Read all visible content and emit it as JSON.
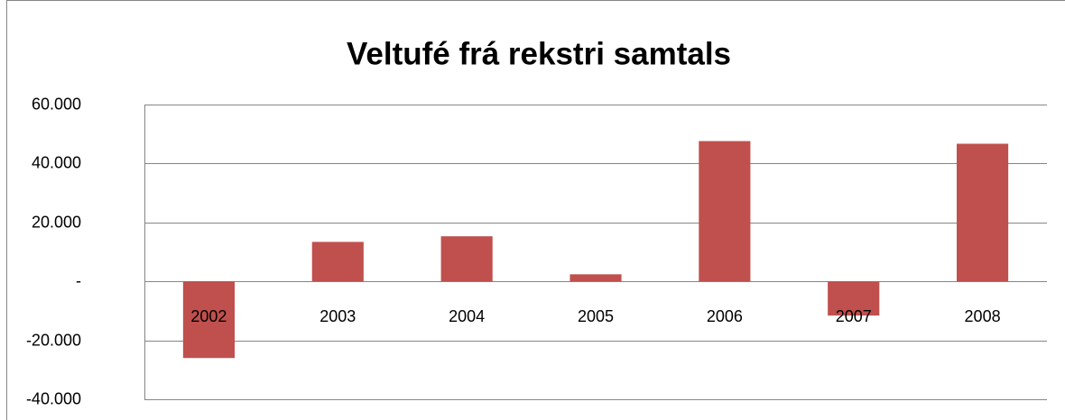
{
  "chart_data": {
    "type": "bar",
    "title": "Veltufé frá rekstri samtals",
    "categories": [
      "2002",
      "2003",
      "2004",
      "2005",
      "2006",
      "2007",
      "2008"
    ],
    "values": [
      -26000,
      13400,
      15300,
      2400,
      47600,
      -11600,
      46700
    ],
    "color": "#c0504d",
    "ylim": [
      -40000,
      60000
    ],
    "yticks": [
      {
        "value": -40000,
        "label": "-40.000"
      },
      {
        "value": -20000,
        "label": "-20.000"
      },
      {
        "value": 0,
        "label": "-"
      },
      {
        "value": 20000,
        "label": "20.000"
      },
      {
        "value": 40000,
        "label": "40.000"
      },
      {
        "value": 60000,
        "label": "60.000"
      }
    ],
    "grid": true
  }
}
